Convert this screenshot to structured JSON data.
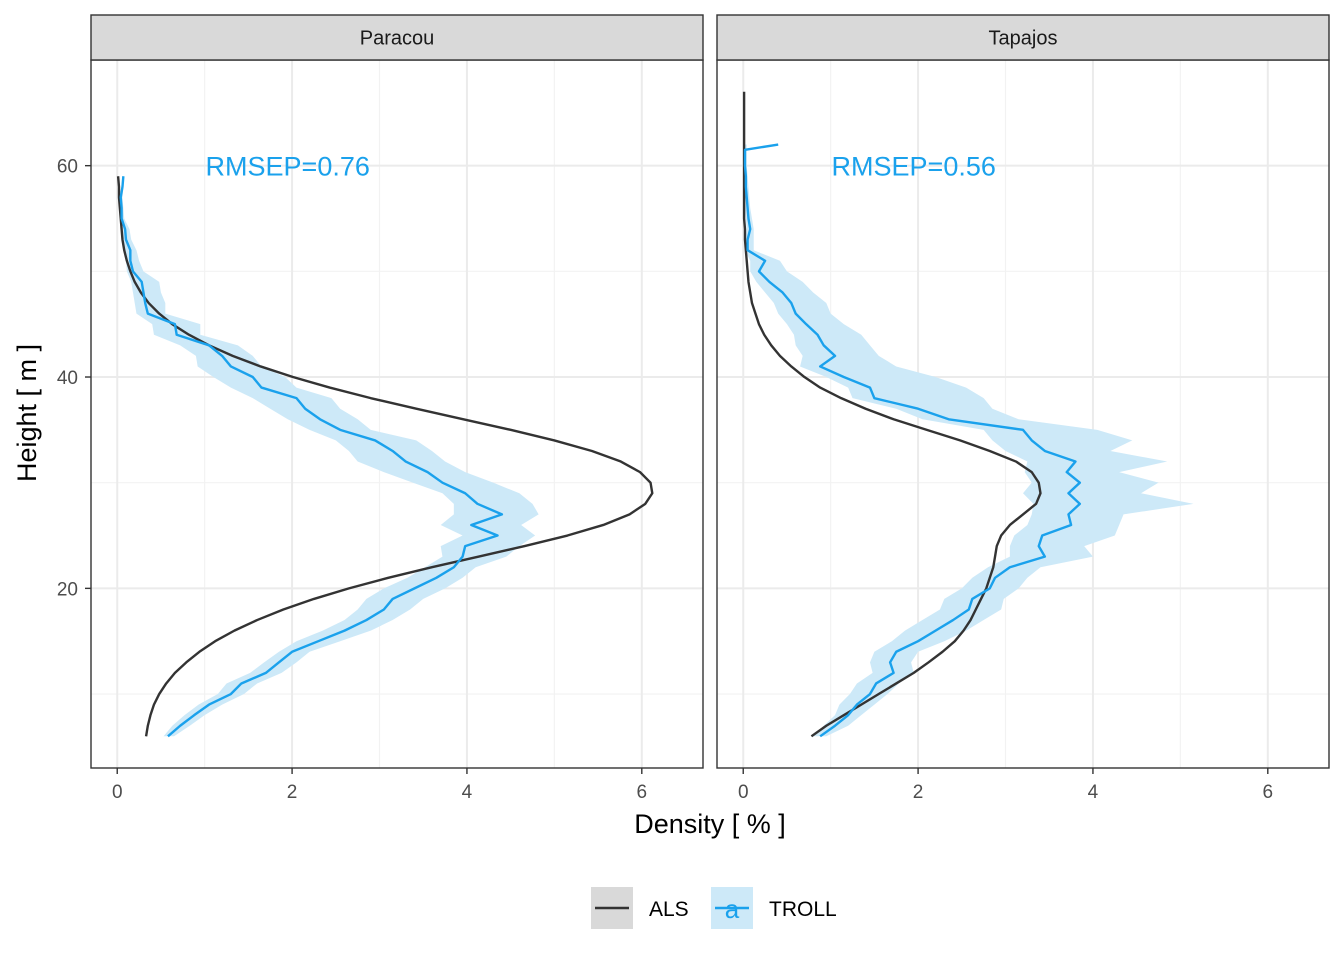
{
  "chart_data": {
    "type": "line",
    "xlabel": "Density [ % ]",
    "ylabel": "Height [ m ]",
    "xlim": [
      -0.3,
      6.7
    ],
    "ylim": [
      3,
      70
    ],
    "x_ticks": [
      0,
      2,
      4,
      6
    ],
    "y_ticks": [
      20,
      40,
      60
    ],
    "grid": true,
    "legend": {
      "position": "bottom",
      "entries": [
        {
          "name": "ALS",
          "color": "#333333",
          "key": "line"
        },
        {
          "name": "TROLL",
          "color": "#1aa1ec",
          "fill": "#cde9f8",
          "key": "line-ribbon",
          "glyph": "a"
        }
      ]
    },
    "colors": {
      "als": "#333333",
      "troll": "#1aa1ec",
      "ribbon": "#cde9f8",
      "strip": "#d9d9d9"
    },
    "panels": [
      {
        "name": "Paracou",
        "annotation": "RMSEP=0.76",
        "annotation_pos": {
          "x": 1.95,
          "y": 60
        },
        "als": {
          "x": [
            0.33,
            0.35,
            0.38,
            0.42,
            0.48,
            0.56,
            0.66,
            0.79,
            0.94,
            1.12,
            1.34,
            1.6,
            1.9,
            2.25,
            2.65,
            3.1,
            3.6,
            4.13,
            4.66,
            5.15,
            5.56,
            5.86,
            6.04,
            6.12,
            6.1,
            5.98,
            5.76,
            5.43,
            5.0,
            4.5,
            3.96,
            3.42,
            2.9,
            2.43,
            2.01,
            1.64,
            1.32,
            1.05,
            0.82,
            0.63,
            0.48,
            0.36,
            0.27,
            0.2,
            0.15,
            0.11,
            0.08,
            0.06,
            0.05,
            0.04,
            0.03,
            0.02,
            0.02,
            0.01
          ],
          "y": [
            6,
            7,
            8,
            9,
            10,
            11,
            12,
            13,
            14,
            15,
            16,
            17,
            18,
            19,
            20,
            21,
            22,
            23,
            24,
            25,
            26,
            27,
            28,
            29,
            30,
            31,
            32,
            33,
            34,
            35,
            36,
            37,
            38,
            39,
            40,
            41,
            42,
            43,
            44,
            45,
            46,
            47,
            48,
            49,
            50,
            51,
            52,
            53,
            54,
            55,
            56,
            57,
            58,
            59
          ]
        },
        "troll": {
          "x": [
            0.58,
            0.72,
            0.88,
            1.05,
            1.3,
            1.42,
            1.7,
            1.85,
            2.0,
            2.3,
            2.6,
            2.85,
            3.05,
            3.15,
            3.4,
            3.65,
            3.85,
            3.95,
            3.98,
            4.35,
            4.05,
            4.4,
            4.12,
            3.98,
            3.72,
            3.55,
            3.3,
            3.15,
            2.95,
            2.55,
            2.32,
            2.15,
            2.05,
            1.65,
            1.55,
            1.3,
            1.2,
            1.05,
            0.68,
            0.66,
            0.35,
            0.32,
            0.3,
            0.28,
            0.18,
            0.15,
            0.15,
            0.1,
            0.09,
            0.05,
            0.05,
            0.04,
            0.06,
            0.07
          ],
          "y": [
            6,
            7,
            8,
            9,
            10,
            11,
            12,
            13,
            14,
            15,
            16,
            17,
            18,
            19,
            20,
            21,
            22,
            23,
            24,
            25,
            26,
            27,
            28,
            29,
            30,
            31,
            32,
            33,
            34,
            35,
            36,
            37,
            38,
            39,
            40,
            41,
            42,
            43,
            44,
            45,
            46,
            47,
            48,
            49,
            50,
            51,
            52,
            53,
            54,
            55,
            56,
            57,
            58,
            59
          ],
          "lo": [
            0.53,
            0.63,
            0.77,
            0.93,
            1.15,
            1.25,
            1.52,
            1.68,
            1.85,
            2.05,
            2.35,
            2.6,
            2.75,
            2.85,
            3.05,
            3.32,
            3.52,
            3.72,
            3.7,
            3.95,
            3.7,
            3.85,
            3.85,
            3.72,
            3.38,
            3.05,
            2.75,
            2.65,
            2.5,
            2.2,
            1.95,
            1.75,
            1.55,
            1.3,
            1.1,
            0.92,
            0.9,
            0.72,
            0.42,
            0.4,
            0.22,
            0.2,
            0.18,
            0.16,
            0.11,
            0.1,
            0.08,
            0.05,
            0.05,
            0.03,
            0.03,
            0.03,
            0.05,
            0.06
          ],
          "hi": [
            0.65,
            0.83,
            1.0,
            1.2,
            1.45,
            1.6,
            1.88,
            2.05,
            2.2,
            2.55,
            2.9,
            3.15,
            3.35,
            3.5,
            3.75,
            3.95,
            4.1,
            4.45,
            4.6,
            4.78,
            4.62,
            4.82,
            4.75,
            4.6,
            4.3,
            3.98,
            3.75,
            3.6,
            3.42,
            2.9,
            2.75,
            2.55,
            2.45,
            2.05,
            1.92,
            1.65,
            1.55,
            1.38,
            0.95,
            0.95,
            0.55,
            0.55,
            0.5,
            0.48,
            0.3,
            0.25,
            0.22,
            0.16,
            0.14,
            0.08,
            0.07,
            0.06,
            0.07,
            0.08
          ]
        }
      },
      {
        "name": "Tapajos",
        "annotation": "RMSEP=0.56",
        "annotation_pos": {
          "x": 1.95,
          "y": 60
        },
        "als": {
          "x": [
            0.78,
            0.95,
            1.15,
            1.35,
            1.55,
            1.75,
            1.95,
            2.12,
            2.28,
            2.42,
            2.52,
            2.6,
            2.66,
            2.72,
            2.78,
            2.82,
            2.86,
            2.88,
            2.9,
            2.95,
            3.05,
            3.2,
            3.35,
            3.4,
            3.38,
            3.3,
            3.12,
            2.82,
            2.48,
            2.1,
            1.72,
            1.4,
            1.12,
            0.88,
            0.7,
            0.55,
            0.42,
            0.32,
            0.24,
            0.18,
            0.14,
            0.1,
            0.08,
            0.06,
            0.05,
            0.04,
            0.03,
            0.02,
            0.02,
            0.01,
            0.01,
            0.01,
            0.01,
            0.01,
            0.01,
            0.01,
            0.01,
            0.01,
            0.01,
            0.01,
            0.01,
            0.01
          ],
          "y": [
            6,
            7,
            8,
            9,
            10,
            11,
            12,
            13,
            14,
            15,
            16,
            17,
            18,
            19,
            20,
            21,
            22,
            23,
            24,
            25,
            26,
            27,
            28,
            29,
            30,
            31,
            32,
            33,
            34,
            35,
            36,
            37,
            38,
            39,
            40,
            41,
            42,
            43,
            44,
            45,
            46,
            47,
            48,
            49,
            50,
            51,
            52,
            53,
            54,
            55,
            56,
            57,
            58,
            59,
            60,
            61,
            62,
            63,
            64,
            65,
            66,
            67
          ]
        },
        "troll": {
          "x": [
            0.88,
            1.05,
            1.2,
            1.3,
            1.45,
            1.52,
            1.72,
            1.68,
            1.75,
            2.0,
            2.2,
            2.4,
            2.58,
            2.62,
            2.82,
            2.88,
            3.05,
            3.45,
            3.38,
            3.42,
            3.75,
            3.72,
            3.85,
            3.72,
            3.85,
            3.7,
            3.8,
            3.45,
            3.3,
            3.2,
            2.35,
            2.0,
            1.5,
            1.45,
            1.15,
            0.88,
            1.05,
            0.92,
            0.85,
            0.72,
            0.6,
            0.55,
            0.45,
            0.3,
            0.18,
            0.25,
            0.05,
            0.05,
            0.08,
            0.06,
            0.05,
            0.04,
            0.03,
            0.03,
            0.02,
            0.02,
            0.02,
            0.4
          ],
          "y": [
            6,
            7,
            8,
            9,
            10,
            11,
            12,
            13,
            14,
            15,
            16,
            17,
            18,
            19,
            20,
            21,
            22,
            23,
            24,
            25,
            26,
            27,
            28,
            29,
            30,
            31,
            32,
            33,
            34,
            35,
            36,
            37,
            38,
            39,
            40,
            41,
            42,
            43,
            44,
            45,
            46,
            47,
            48,
            49,
            50,
            51,
            52,
            53,
            54,
            55,
            56,
            57,
            58,
            59,
            60,
            61,
            61.5,
            62
          ],
          "lo": [
            0.8,
            0.92,
            1.05,
            1.1,
            1.22,
            1.3,
            1.48,
            1.45,
            1.5,
            1.7,
            1.85,
            2.05,
            2.25,
            2.3,
            2.5,
            2.62,
            2.8,
            3.05,
            3.05,
            3.1,
            3.25,
            3.3,
            3.32,
            3.2,
            3.3,
            3.22,
            3.25,
            3.0,
            2.85,
            2.75,
            2.05,
            1.75,
            1.25,
            1.2,
            0.95,
            0.65,
            0.68,
            0.6,
            0.58,
            0.5,
            0.4,
            0.35,
            0.25,
            0.15,
            0.08,
            0.08,
            0.02,
            0.02,
            0.04,
            0.03,
            0.02,
            0.02,
            0.02,
            0.02,
            0.01,
            0.01,
            0.01,
            0.01
          ],
          "hi": [
            0.95,
            1.2,
            1.35,
            1.5,
            1.65,
            1.78,
            1.95,
            1.92,
            2.0,
            2.3,
            2.55,
            2.75,
            2.95,
            2.98,
            3.15,
            3.25,
            3.4,
            4.0,
            3.9,
            4.25,
            4.3,
            4.35,
            5.15,
            4.55,
            4.75,
            4.3,
            4.85,
            4.2,
            4.45,
            4.05,
            3.15,
            2.85,
            2.75,
            2.55,
            2.2,
            1.75,
            1.55,
            1.45,
            1.35,
            1.15,
            1.0,
            0.95,
            0.8,
            0.68,
            0.5,
            0.42,
            0.12,
            0.12,
            0.12,
            0.1,
            0.08,
            0.07,
            0.06,
            0.05,
            0.04,
            0.04,
            0.04,
            0.04
          ]
        }
      }
    ]
  }
}
